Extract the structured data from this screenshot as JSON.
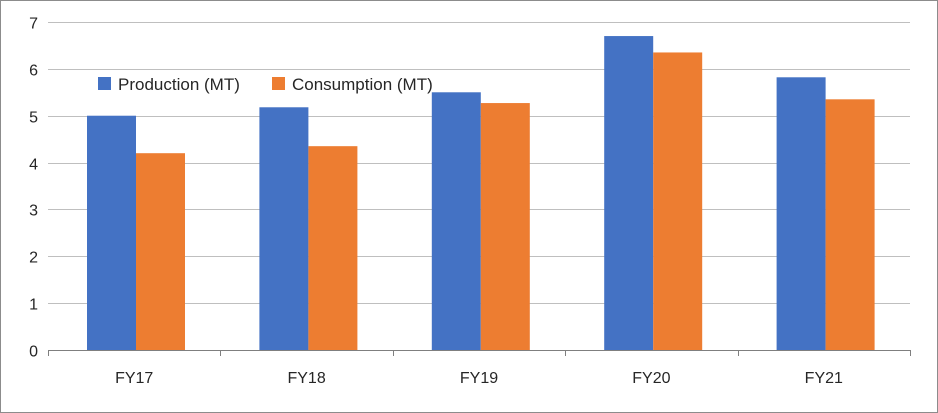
{
  "chart_data": {
    "type": "bar",
    "categories": [
      "FY17",
      "FY18",
      "FY19",
      "FY20",
      "FY21"
    ],
    "series": [
      {
        "name": "Production (MT)",
        "color": "#4472c4",
        "values": [
          5.0,
          5.18,
          5.5,
          6.7,
          5.82
        ]
      },
      {
        "name": "Consumption (MT)",
        "color": "#ed7d31",
        "values": [
          4.2,
          4.35,
          5.27,
          6.35,
          5.35
        ]
      }
    ],
    "yticks": [
      "0",
      "1",
      "2",
      "3",
      "4",
      "5",
      "6",
      "7"
    ],
    "ylim": [
      0,
      7
    ],
    "grid": true,
    "legend_position": "top-left",
    "title": "",
    "xlabel": "",
    "ylabel": ""
  }
}
